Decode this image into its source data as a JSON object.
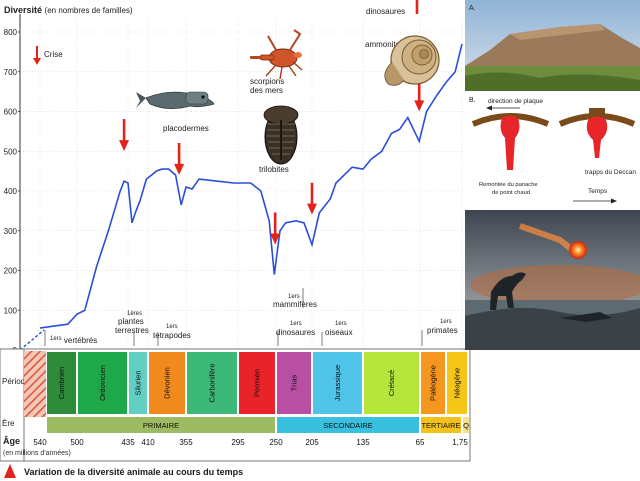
{
  "chart_data": {
    "type": "line",
    "ylabel": "Diversité",
    "ylabel_unit": "(en nombres de familles)",
    "ylim": [
      0,
      800
    ],
    "yticks": [
      0,
      100,
      200,
      300,
      400,
      500,
      600,
      700,
      800
    ],
    "grid": true,
    "crise_legend": "Crise",
    "series": [
      {
        "points": [
          [
            540,
            55
          ],
          [
            525,
            60
          ],
          [
            510,
            65
          ],
          [
            500,
            90
          ],
          [
            490,
            100
          ],
          [
            475,
            210
          ],
          [
            460,
            300
          ],
          [
            445,
            400
          ],
          [
            440,
            425
          ],
          [
            435,
            420
          ],
          [
            430,
            320
          ],
          [
            425,
            350
          ],
          [
            420,
            375
          ],
          [
            412,
            430
          ],
          [
            405,
            440
          ],
          [
            398,
            450
          ],
          [
            390,
            455
          ],
          [
            380,
            455
          ],
          [
            370,
            440
          ],
          [
            362,
            365
          ],
          [
            355,
            410
          ],
          [
            348,
            405
          ],
          [
            340,
            430
          ],
          [
            320,
            425
          ],
          [
            300,
            420
          ],
          [
            280,
            420
          ],
          [
            268,
            400
          ],
          [
            258,
            325
          ],
          [
            252,
            190
          ],
          [
            245,
            300
          ],
          [
            238,
            320
          ],
          [
            225,
            325
          ],
          [
            215,
            320
          ],
          [
            205,
            265
          ],
          [
            195,
            345
          ],
          [
            180,
            380
          ],
          [
            172,
            420
          ],
          [
            150,
            460
          ],
          [
            135,
            455
          ],
          [
            125,
            480
          ],
          [
            112,
            500
          ],
          [
            100,
            545
          ],
          [
            90,
            555
          ],
          [
            80,
            585
          ],
          [
            66,
            525
          ],
          [
            55,
            600
          ],
          [
            40,
            640
          ],
          [
            25,
            675
          ],
          [
            12,
            700
          ],
          [
            1.75,
            770
          ]
        ]
      }
    ],
    "crises_ma": [
      440,
      365,
      251,
      205,
      66
    ]
  },
  "annotations": {
    "dinosaures_top": "dinosaures",
    "ammonites": "ammonites",
    "scorpions": "scorpions\ndes mers",
    "placodermes": "placodermes",
    "trilobites": "trilobites",
    "vertebres": "1ers vertébrés",
    "plantes": "1ères plantes terrestres",
    "tetrapodes": "1ers tétrapodes",
    "mammiferes": "1ers mammifères",
    "dinos": "1ers dinosaures",
    "oiseaux": "1ers oiseaux",
    "primates": "1ers primates"
  },
  "timeline": {
    "periode_label": "Période",
    "ere_label": "Ère",
    "age_label": "Âge",
    "age_unit": "(en millions d'années)",
    "periods": [
      {
        "name": "Cambrien",
        "color": "#2e8b3a"
      },
      {
        "name": "Ordovicien",
        "color": "#1fa84a"
      },
      {
        "name": "Silurien",
        "color": "#5fd0c2"
      },
      {
        "name": "Dévonien",
        "color": "#f08a1e"
      },
      {
        "name": "Carbonifère",
        "color": "#3cb878"
      },
      {
        "name": "Permien",
        "color": "#e8242a"
      },
      {
        "name": "Trias",
        "color": "#b84fa2"
      },
      {
        "name": "Jurassique",
        "color": "#4fc3e8"
      },
      {
        "name": "Crétacé",
        "color": "#b5e53a"
      },
      {
        "name": "Paléogène",
        "color": "#f5961e"
      },
      {
        "name": "Néogène",
        "color": "#f5c518"
      }
    ],
    "eras": [
      {
        "name": "PRIMAIRE",
        "color": "#9dbb63"
      },
      {
        "name": "SECONDAIRE",
        "color": "#38c0de"
      },
      {
        "name": "TERTIAIRE",
        "color": "#f3c21a"
      },
      {
        "name": "Q",
        "color": "#f7e08a"
      }
    ],
    "ages": [
      "540",
      "500",
      "435",
      "410",
      "355",
      "295",
      "250",
      "205",
      "135",
      "65",
      "1,75"
    ]
  },
  "caption": "Variation de la diversité animale au cours du temps",
  "side_panel": {
    "label_a": "A.",
    "label_b": "B.",
    "plate_direction": "direction de plaque",
    "plume_text": "Remontée du panache de point chaud",
    "trapps_text": "trapps du Deccan",
    "temps_text": "Temps"
  },
  "colors": {
    "curve": "#2a4fd6",
    "grid": "#c9c9c9",
    "arrow": "#e2231a"
  }
}
